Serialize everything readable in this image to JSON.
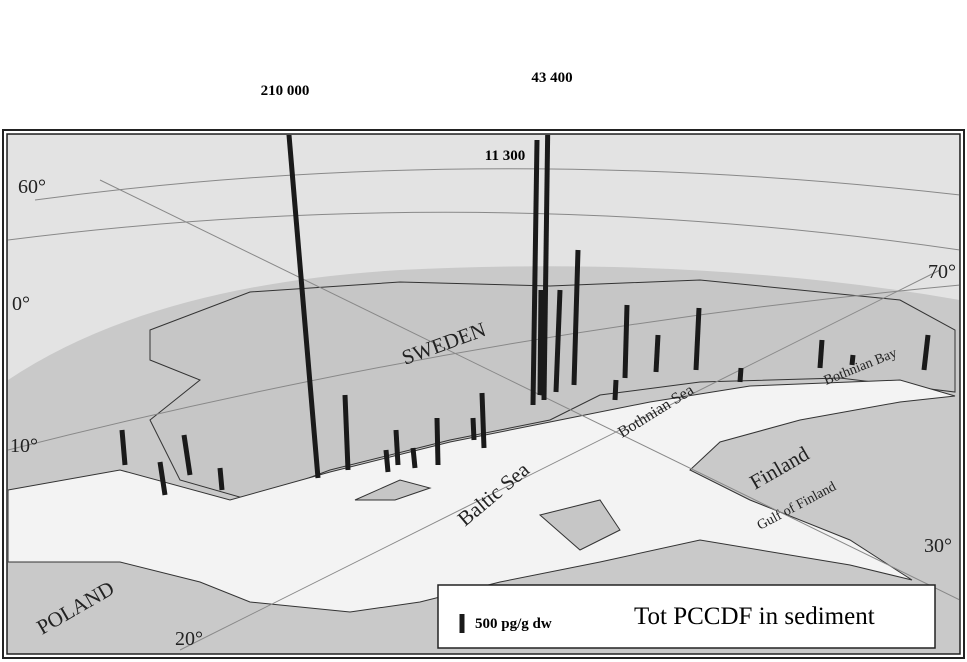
{
  "map": {
    "peak_labels": [
      "210 000",
      "43 400",
      "11 300"
    ],
    "countries": [
      "SWEDEN",
      "Finland",
      "POLAND"
    ],
    "seas": [
      "Baltic Sea",
      "Bothnian Sea",
      "Bothnian Bay",
      "Gulf of Finland"
    ],
    "graticule_labels": [
      "60°",
      "0°",
      "70°",
      "10°",
      "30°",
      "20°"
    ],
    "legend": {
      "scale": "500 pg/g dw",
      "title": "Tot PCCDF in sediment"
    }
  }
}
